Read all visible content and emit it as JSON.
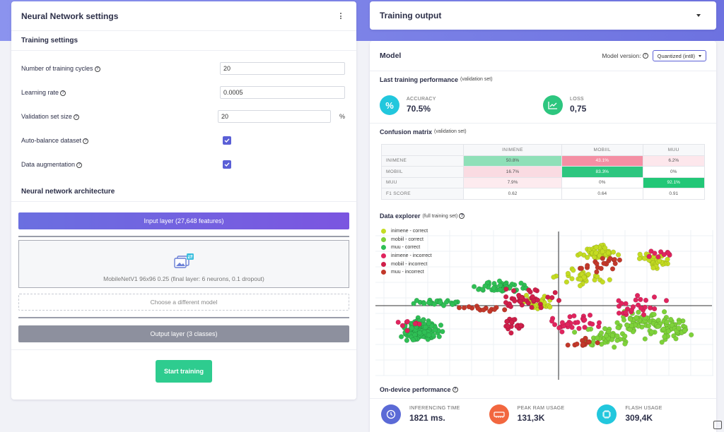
{
  "left_panel": {
    "title": "Neural Network settings",
    "training_settings": {
      "title": "Training settings",
      "fields": [
        {
          "label": "Number of training cycles",
          "value": "20"
        },
        {
          "label": "Learning rate",
          "value": "0.0005"
        },
        {
          "label": "Validation set size",
          "value": "20",
          "unit": "%"
        }
      ],
      "checkboxes": [
        {
          "label": "Auto-balance dataset",
          "checked": true
        },
        {
          "label": "Data augmentation",
          "checked": true
        }
      ]
    },
    "architecture": {
      "title": "Neural network architecture",
      "input_layer": "Input layer (27,648 features)",
      "model_block": "MobileNetV1 96x96 0.25 (final layer: 6 neurons, 0.1 dropout)",
      "choose_model": "Choose a different model",
      "output_layer": "Output layer (3 classes)"
    },
    "start_button": "Start training"
  },
  "training_output": {
    "title": "Training output"
  },
  "model": {
    "title": "Model",
    "version_label": "Model version:",
    "version_value": "Quantized (int8)",
    "performance": {
      "title": "Last training performance",
      "subtitle": "(validation set)",
      "accuracy_label": "ACCURACY",
      "accuracy_value": "70.5%",
      "loss_label": "LOSS",
      "loss_value": "0,75"
    },
    "confusion": {
      "title": "Confusion matrix",
      "subtitle": "(validation set)",
      "columns": [
        "INIMENE",
        "MOBIIL",
        "MUU"
      ],
      "rows": [
        {
          "label": "INIMENE",
          "cells": [
            "50.8%",
            "43.1%",
            "6.2%"
          ],
          "colors": [
            "#8fe0b8",
            "#f48fa4",
            "#fde7ec"
          ],
          "text_colors": [
            "#555",
            "#fff",
            "#555"
          ]
        },
        {
          "label": "MOBIIL",
          "cells": [
            "16.7%",
            "83.3%",
            "0%"
          ],
          "colors": [
            "#fadbe2",
            "#2dc67f",
            "#ffffff"
          ],
          "text_colors": [
            "#555",
            "#fff",
            "#555"
          ]
        },
        {
          "label": "MUU",
          "cells": [
            "7.9%",
            "0%",
            "92.1%"
          ],
          "colors": [
            "#fdebef",
            "#ffffff",
            "#22c777"
          ],
          "text_colors": [
            "#555",
            "#555",
            "#fff"
          ]
        },
        {
          "label": "F1 SCORE",
          "cells": [
            "0.62",
            "0.64",
            "0.91"
          ],
          "colors": [
            "#ffffff",
            "#ffffff",
            "#ffffff"
          ],
          "text_colors": [
            "#555",
            "#555",
            "#555"
          ]
        }
      ]
    },
    "explorer": {
      "title": "Data explorer",
      "subtitle": "(full training set)",
      "legend": [
        {
          "label": "inimene - correct",
          "color": "#c4dc22"
        },
        {
          "label": "mobiil - correct",
          "color": "#7ed23a"
        },
        {
          "label": "muu - correct",
          "color": "#2fbf55"
        },
        {
          "label": "inimene - incorrect",
          "color": "#e0245e"
        },
        {
          "label": "mobiil - incorrect",
          "color": "#cf1f4a"
        },
        {
          "label": "muu - incorrect",
          "color": "#c2382a"
        }
      ]
    },
    "on_device": {
      "title": "On-device performance",
      "items": [
        {
          "label": "INFERENCING TIME",
          "value": "1821 ms.",
          "color": "#5b6ad6",
          "icon": "clock-icon"
        },
        {
          "label": "PEAK RAM USAGE",
          "value": "131,3K",
          "color": "#f2673f",
          "icon": "ram-icon"
        },
        {
          "label": "FLASH USAGE",
          "value": "309,4K",
          "color": "#22c7dd",
          "icon": "chip-icon"
        }
      ]
    }
  }
}
